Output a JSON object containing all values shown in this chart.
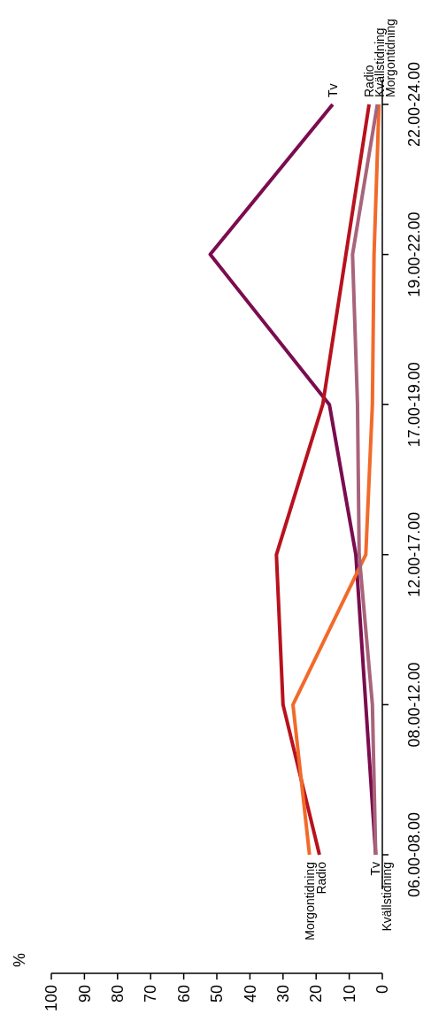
{
  "chart_data": {
    "type": "line",
    "orientation": "horizontal",
    "ylabel": "%",
    "categories": [
      "22.00-24.00",
      "19.00-22.00",
      "17.00-19.00",
      "12.00-17.00",
      "08.00-12.00",
      "06.00-08.00"
    ],
    "series": [
      {
        "name": "Tv",
        "color": "#7b0c4f",
        "values": [
          15,
          52,
          16,
          8,
          5,
          2
        ]
      },
      {
        "name": "Radio",
        "color": "#b8121e",
        "values": [
          4,
          11,
          18,
          32,
          30,
          19
        ]
      },
      {
        "name": "Morgontidning",
        "color": "#f26a2a",
        "values": [
          1,
          2.5,
          3,
          5,
          27,
          22
        ]
      },
      {
        "name": "Kvällstidning",
        "color": "#a8647a",
        "values": [
          1.5,
          9,
          7.5,
          7,
          3,
          2
        ]
      }
    ],
    "xlim": [
      100,
      0
    ],
    "xticks": [
      0,
      10,
      20,
      30,
      40,
      50,
      60,
      70,
      80,
      90,
      100
    ],
    "marker": "none",
    "line_style": "solid"
  }
}
